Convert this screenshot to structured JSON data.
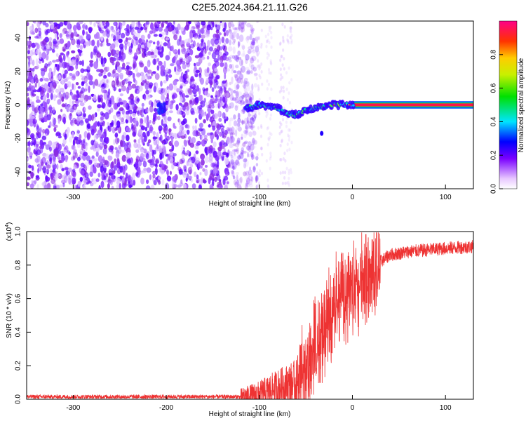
{
  "title": "C2E5.2024.364.21.11.G26",
  "chart_data": [
    {
      "type": "heatmap",
      "xlabel": "Height of straight line (km)",
      "ylabel": "Frequency (Hz)",
      "xlim": [
        -350,
        130
      ],
      "ylim": [
        -50,
        50
      ],
      "x_ticks": [
        -300,
        -200,
        -100,
        0,
        100
      ],
      "x_tick_labels": [
        "-300",
        "-200",
        "-100",
        "0",
        "100"
      ],
      "y_ticks": [
        -40,
        -20,
        0,
        20,
        40
      ],
      "y_tick_labels": [
        "-40",
        "-20",
        "0",
        "20",
        "40"
      ],
      "colorbar": {
        "label": "Normalized spectral amplitude",
        "ticks": [
          0.0,
          0.2,
          0.4,
          0.6,
          0.8
        ],
        "tick_labels": [
          "0.0",
          "0.2",
          "0.4",
          "0.6",
          "0.8"
        ],
        "range": [
          0,
          1
        ]
      },
      "ridge": {
        "x": [
          -115,
          -100,
          -90,
          -80,
          -70,
          -60,
          -50,
          -40,
          -30,
          -20,
          -10,
          0,
          130
        ],
        "y": [
          -2,
          0,
          -1,
          -2,
          -5,
          -6,
          -3,
          -2,
          -1,
          0,
          0,
          0,
          0
        ]
      },
      "noise_end_x": -110,
      "grid": false
    },
    {
      "type": "line",
      "xlabel": "Height of straight line (km)",
      "ylabel": "SNR (10 * v/v)",
      "y_multiplier_label": "(x10",
      "y_multiplier_exp": "4",
      "xlim": [
        -350,
        130
      ],
      "ylim": [
        0,
        1.0
      ],
      "x_ticks": [
        -300,
        -200,
        -100,
        0,
        100
      ],
      "x_tick_labels": [
        "-300",
        "-200",
        "-100",
        "0",
        "100"
      ],
      "y_ticks": [
        0.0,
        0.2,
        0.4,
        0.6,
        0.8,
        1.0
      ],
      "y_tick_labels": [
        "0.0",
        "0.2",
        "0.4",
        "0.6",
        "0.8",
        "1.0"
      ],
      "color": "#ee3333",
      "envelope": {
        "x": [
          -350,
          -120,
          -100,
          -80,
          -60,
          -50,
          -40,
          -30,
          -20,
          -10,
          0,
          10,
          20,
          30,
          40,
          60,
          80,
          100,
          130
        ],
        "y": [
          0.015,
          0.015,
          0.03,
          0.07,
          0.1,
          0.18,
          0.3,
          0.45,
          0.6,
          0.65,
          0.7,
          0.72,
          0.78,
          0.82,
          0.86,
          0.88,
          0.89,
          0.9,
          0.91
        ]
      },
      "grid": false
    }
  ]
}
